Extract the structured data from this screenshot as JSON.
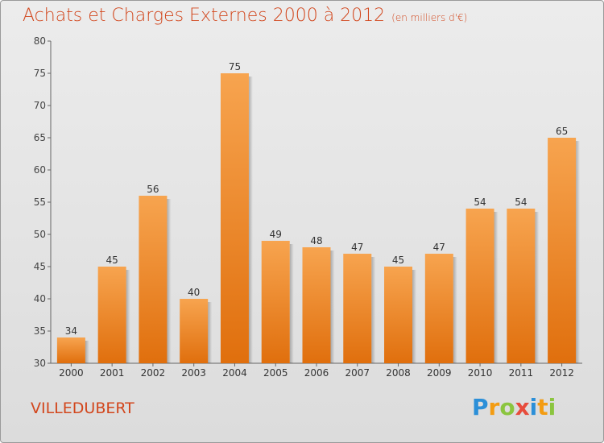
{
  "chart_data": {
    "type": "bar",
    "title": "Achats et Charges Externes 2000 à 2012",
    "subtitle": "(en milliers d'€)",
    "categories": [
      "2000",
      "2001",
      "2002",
      "2003",
      "2004",
      "2005",
      "2006",
      "2007",
      "2008",
      "2009",
      "2010",
      "2011",
      "2012"
    ],
    "values": [
      34,
      45,
      56,
      40,
      75,
      49,
      48,
      47,
      45,
      47,
      54,
      54,
      65
    ],
    "ylim": [
      30,
      80
    ],
    "yticks": [
      30,
      35,
      40,
      45,
      50,
      55,
      60,
      65,
      70,
      75,
      80
    ],
    "grid": false,
    "bar_color": "#f07f1e",
    "xlabel": "",
    "ylabel": ""
  },
  "commune": "VILLEDUBERT",
  "logo": {
    "letters": [
      "P",
      "r",
      "o",
      "x",
      "i",
      "t",
      "i"
    ],
    "colors": [
      "#2b8fd8",
      "#f39c12",
      "#8bc53f",
      "#e74c3c",
      "#2b8fd8",
      "#f39c12",
      "#8bc53f"
    ]
  }
}
